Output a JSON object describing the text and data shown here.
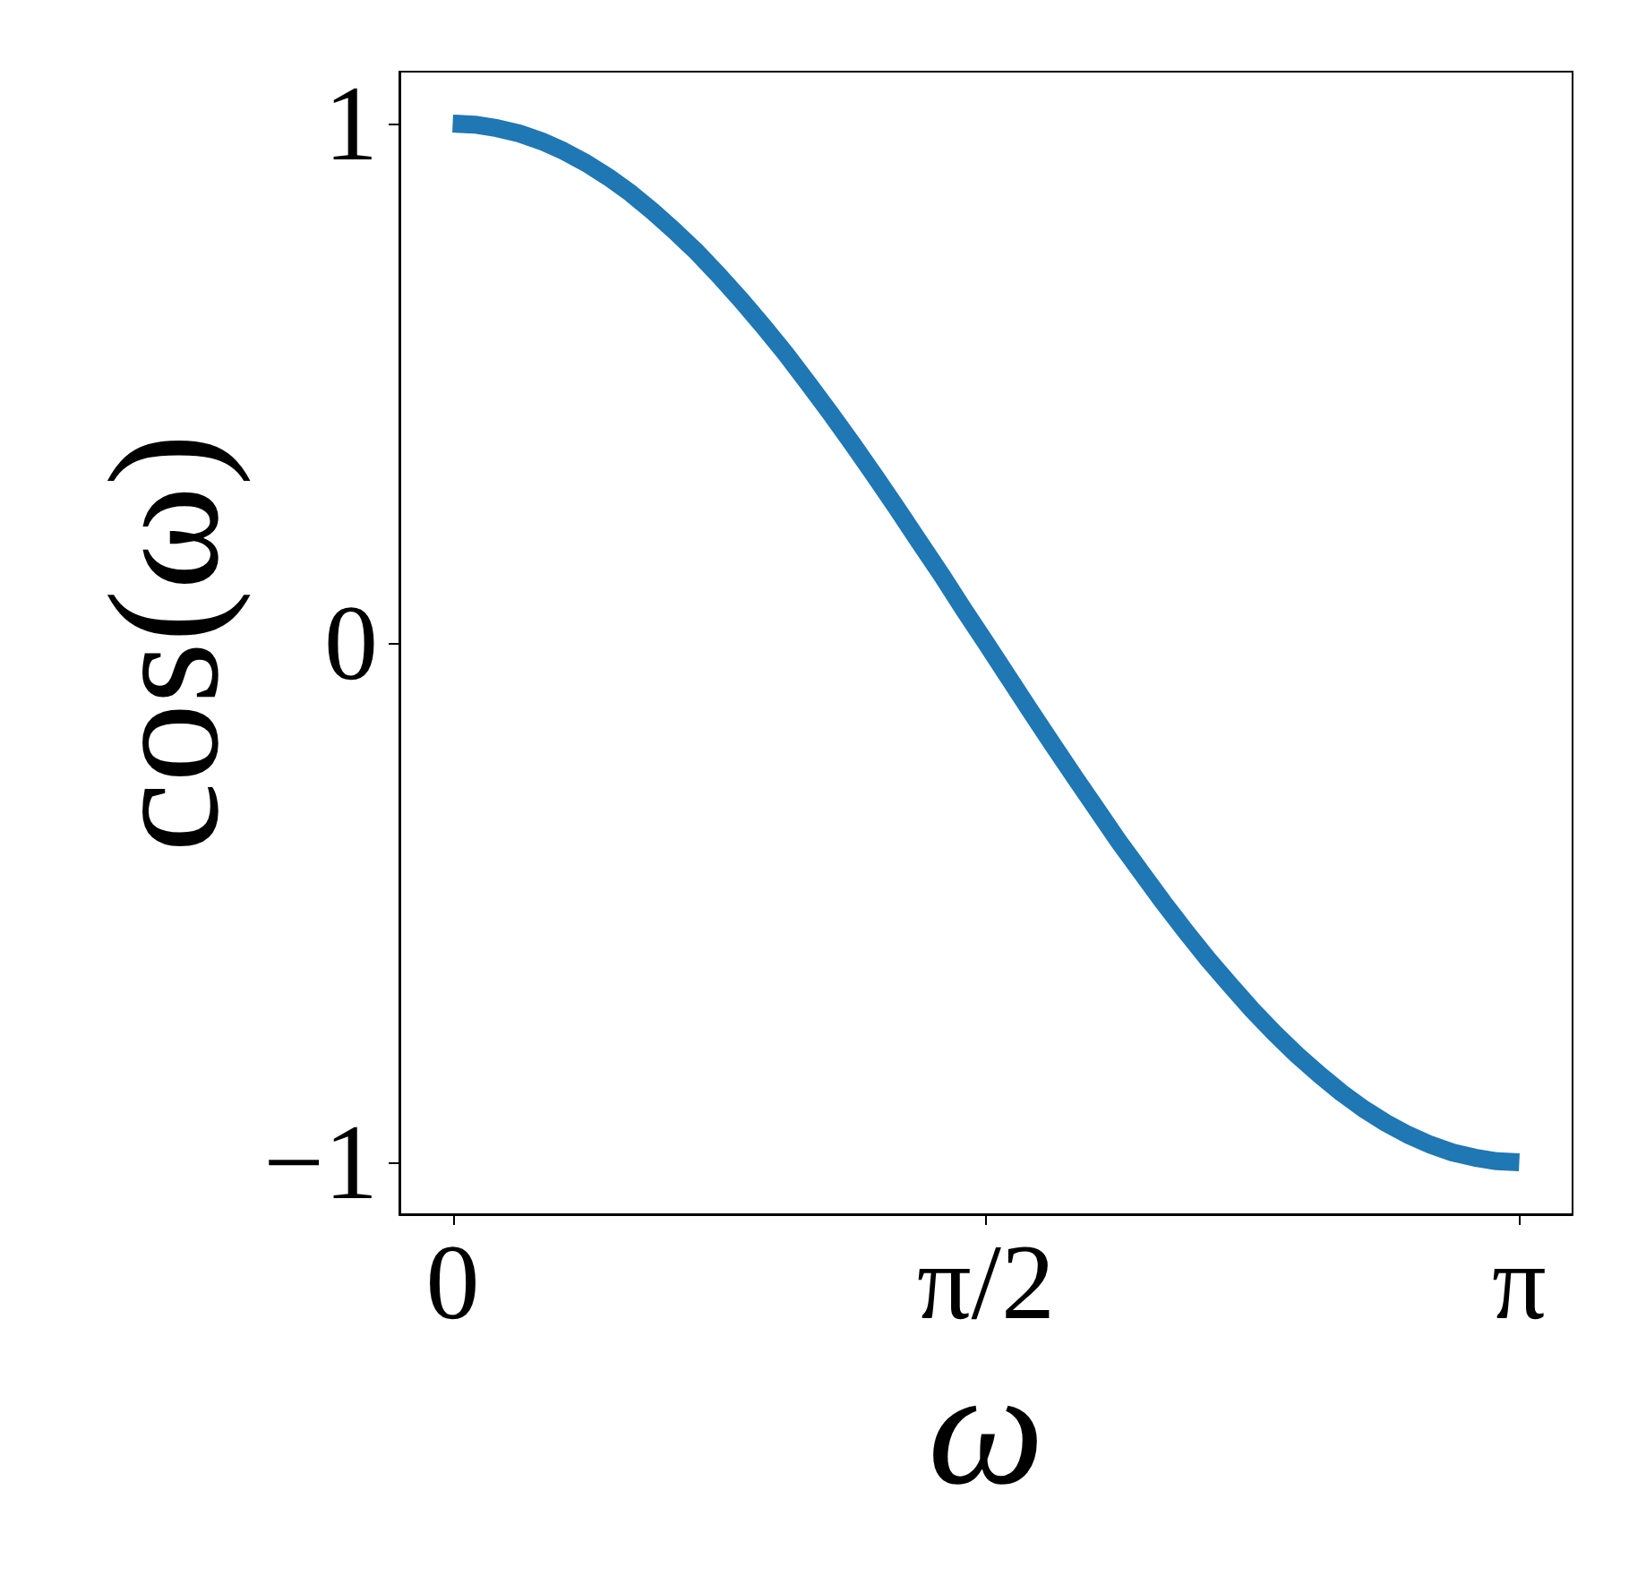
{
  "chart_data": {
    "type": "line",
    "xlabel": "ω",
    "ylabel": "cos(ω)",
    "x": [
      0,
      0.065,
      0.131,
      0.196,
      0.262,
      0.327,
      0.393,
      0.458,
      0.524,
      0.589,
      0.654,
      0.72,
      0.785,
      0.851,
      0.916,
      0.982,
      1.047,
      1.113,
      1.178,
      1.244,
      1.309,
      1.374,
      1.44,
      1.505,
      1.571,
      1.636,
      1.702,
      1.767,
      1.833,
      1.898,
      1.963,
      2.029,
      2.094,
      2.16,
      2.225,
      2.291,
      2.356,
      2.422,
      2.487,
      2.553,
      2.618,
      2.683,
      2.749,
      2.814,
      2.88,
      2.945,
      3.011,
      3.076,
      3.142
    ],
    "series": [
      {
        "color": "#1f77b4",
        "values": [
          1.0,
          0.998,
          0.991,
          0.981,
          0.966,
          0.947,
          0.924,
          0.897,
          0.866,
          0.831,
          0.793,
          0.752,
          0.707,
          0.659,
          0.609,
          0.556,
          0.5,
          0.442,
          0.383,
          0.321,
          0.259,
          0.195,
          0.131,
          0.065,
          0.0,
          -0.065,
          -0.131,
          -0.195,
          -0.259,
          -0.321,
          -0.383,
          -0.442,
          -0.5,
          -0.556,
          -0.609,
          -0.659,
          -0.707,
          -0.752,
          -0.793,
          -0.831,
          -0.866,
          -0.897,
          -0.924,
          -0.947,
          -0.966,
          -0.981,
          -0.991,
          -0.998,
          -1.0
        ]
      }
    ],
    "xlim": [
      -0.157,
      3.299
    ],
    "xticks": [
      0,
      {
        "value": 1.5708,
        "label": "π/2"
      },
      {
        "value": 3.1416,
        "label": "π"
      }
    ],
    "ylim": [
      -1.1,
      1.1
    ],
    "yticks": [
      {
        "value": -1,
        "label": "−1"
      },
      0,
      1
    ],
    "grid": false,
    "line_style": "solid"
  }
}
